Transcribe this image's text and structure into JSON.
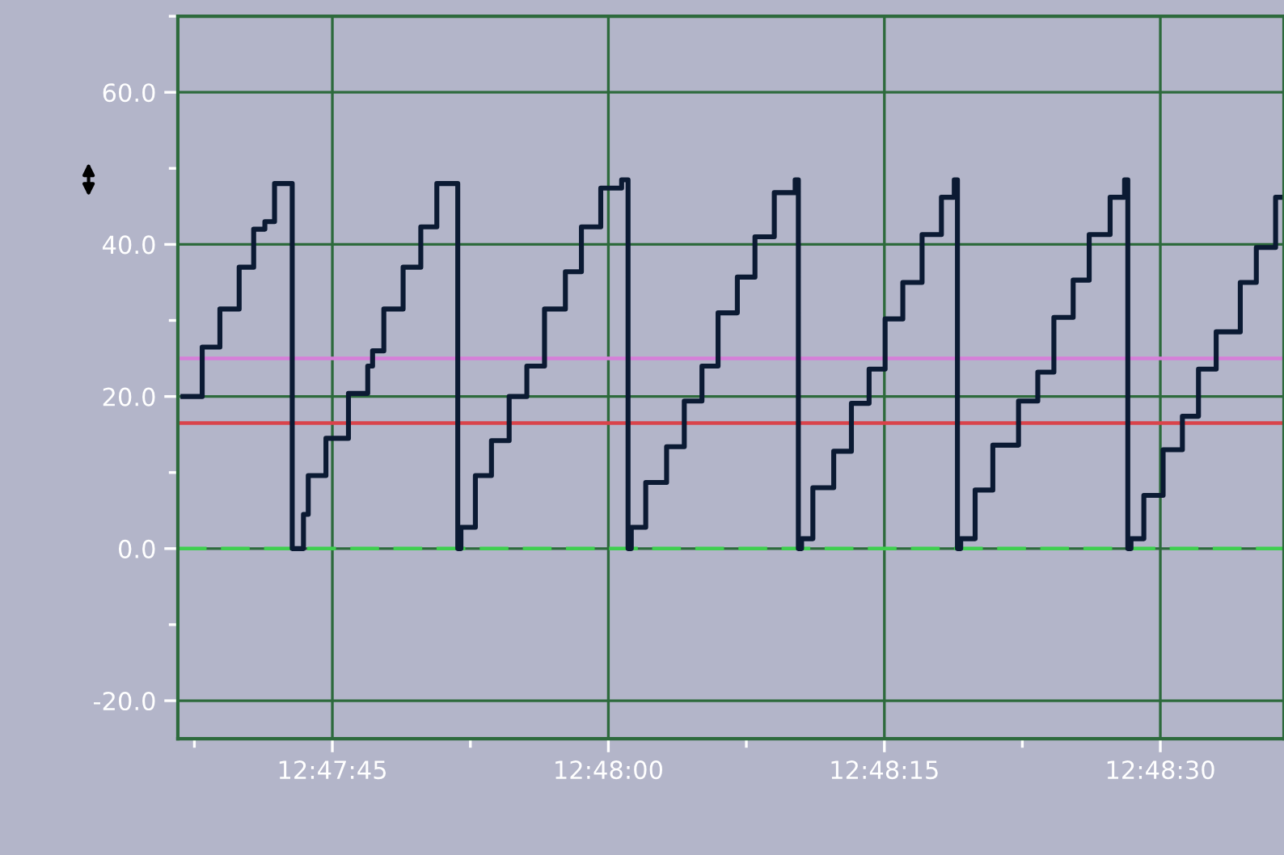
{
  "chart_data": {
    "type": "step",
    "xlim": [
      12.7935,
      12.8102
    ],
    "ylim": [
      -25,
      70
    ],
    "xticks": [
      {
        "value": 12.79375,
        "label": null
      },
      {
        "value": 12.795833,
        "label": "12:47:45"
      },
      {
        "value": 12.797917,
        "label": null
      },
      {
        "value": 12.8,
        "label": "12:48:00"
      },
      {
        "value": 12.802083,
        "label": null
      },
      {
        "value": 12.804167,
        "label": "12:48:15"
      },
      {
        "value": 12.80625,
        "label": null
      },
      {
        "value": 12.808333,
        "label": "12:48:30"
      }
    ],
    "yticks": [
      {
        "value": -20,
        "label": "-20.0"
      },
      {
        "value": -10,
        "label": null
      },
      {
        "value": 0,
        "label": "0.0"
      },
      {
        "value": 10,
        "label": null
      },
      {
        "value": 20,
        "label": "20.0"
      },
      {
        "value": 30,
        "label": null
      },
      {
        "value": 40,
        "label": "40.0"
      },
      {
        "value": 50,
        "label": null
      },
      {
        "value": 60,
        "label": "60.0"
      },
      {
        "value": 70,
        "label": null
      }
    ],
    "grid": true,
    "marker": "none",
    "line_style": "solid",
    "ref_lines": [
      {
        "axis": "y",
        "value": 25,
        "color": "#d67fd8",
        "line_style": "solid"
      },
      {
        "axis": "y",
        "value": 16.5,
        "color": "#d9434a",
        "line_style": "solid"
      },
      {
        "axis": "y",
        "value": 0,
        "color": "#3fcf4f",
        "line_style": "dashed"
      }
    ],
    "series": [
      {
        "color": "#0b1a33",
        "x": [
          12.793577,
          12.793868,
          12.794135,
          12.794426,
          12.794645,
          12.794814,
          12.79496,
          12.795227,
          12.795397,
          12.795469,
          12.795736,
          12.796076,
          12.796367,
          12.79644,
          12.79661,
          12.796901,
          12.797168,
          12.79741,
          12.797726,
          12.797774,
          12.797992,
          12.798235,
          12.798502,
          12.798769,
          12.799036,
          12.799351,
          12.799593,
          12.799885,
          12.8002,
          12.800297,
          12.800346,
          12.800564,
          12.800879,
          12.801146,
          12.801413,
          12.801656,
          12.801947,
          12.802213,
          12.802505,
          12.80282,
          12.802868,
          12.802917,
          12.803087,
          12.803402,
          12.803669,
          12.803936,
          12.804178,
          12.804445,
          12.804736,
          12.805028,
          12.805222,
          12.80527,
          12.805319,
          12.805537,
          12.805804,
          12.806192,
          12.806483,
          12.806726,
          12.807017,
          12.807259,
          12.807575,
          12.807793,
          12.807842,
          12.80789,
          12.808084,
          12.808375,
          12.808666,
          12.808909,
          12.809176,
          12.80954,
          12.809782,
          12.810073,
          12.810146
        ],
        "values": [
          20,
          26.5,
          31.5,
          37,
          42,
          43,
          48,
          0,
          4.5,
          9.6,
          14.5,
          20.4,
          24,
          26,
          31.5,
          37,
          42.3,
          48,
          0,
          2.8,
          9.6,
          14.2,
          20,
          24,
          31.5,
          36.4,
          42.3,
          47.4,
          48.5,
          0,
          2.8,
          8.7,
          13.4,
          19.4,
          24,
          31,
          35.7,
          41,
          46.8,
          48.5,
          0,
          1.3,
          8,
          12.8,
          19.1,
          23.6,
          30.2,
          35,
          41.3,
          46.2,
          48.5,
          0,
          1.3,
          7.7,
          13.6,
          19.4,
          23.2,
          30.4,
          35.3,
          41.3,
          46.2,
          48.5,
          0,
          1.3,
          7,
          13,
          17.4,
          23.6,
          28.5,
          35,
          39.6,
          46.2,
          46.2
        ]
      }
    ]
  }
}
